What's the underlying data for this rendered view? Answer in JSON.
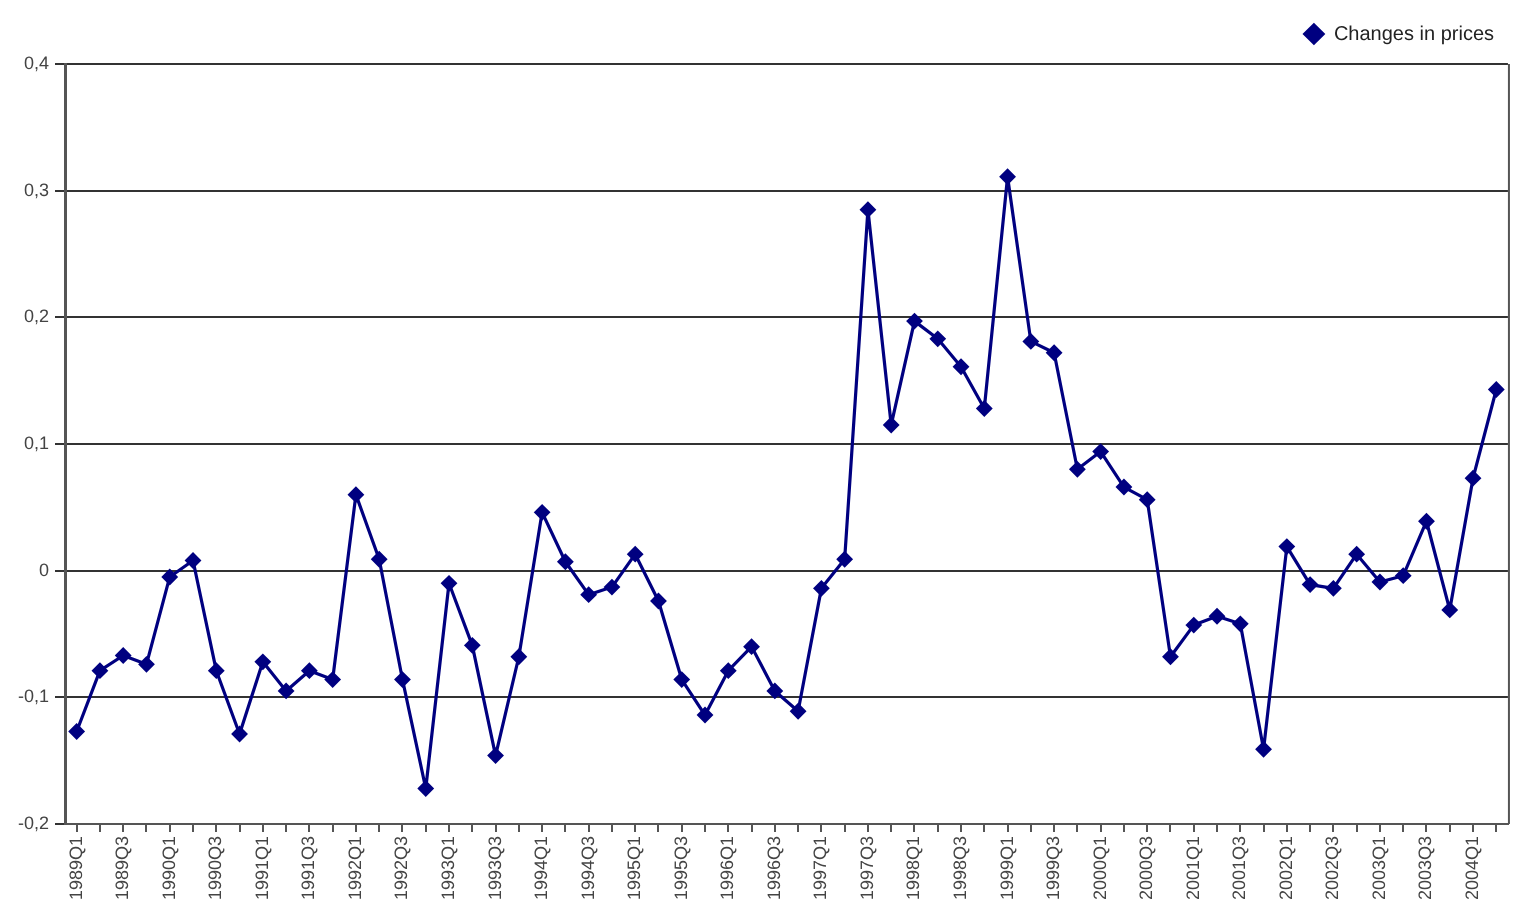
{
  "chart_data": {
    "type": "line",
    "categories": [
      "1989Q1",
      null,
      "1989Q3",
      null,
      "1990Q1",
      null,
      "1990Q3",
      null,
      "1991Q1",
      null,
      "1991Q3",
      null,
      "1992Q1",
      null,
      "1992Q3",
      null,
      "1993Q1",
      null,
      "1993Q3",
      null,
      "1994Q1",
      null,
      "1994Q3",
      null,
      "1995Q1",
      null,
      "1995Q3",
      null,
      "1996Q1",
      null,
      "1996Q3",
      null,
      "1997Q1",
      null,
      "1997Q3",
      null,
      "1998Q1",
      null,
      "1998Q3",
      null,
      "1999Q1",
      null,
      "1999Q3",
      null,
      "2000Q1",
      null,
      "2000Q3",
      null,
      "2001Q1",
      null,
      "2001Q3",
      null,
      "2002Q1",
      null,
      "2002Q3",
      null,
      "2003Q1",
      null,
      "2003Q3",
      null,
      "2004Q1",
      null
    ],
    "series": [
      {
        "name": "Changes in prices",
        "color": "#000080",
        "values": [
          -0.127,
          -0.079,
          -0.067,
          -0.074,
          -0.005,
          0.008,
          -0.079,
          -0.129,
          -0.072,
          -0.095,
          -0.079,
          -0.086,
          0.06,
          0.009,
          -0.086,
          -0.172,
          -0.01,
          -0.059,
          -0.146,
          -0.068,
          0.046,
          0.007,
          -0.019,
          -0.013,
          0.013,
          -0.024,
          -0.086,
          -0.114,
          -0.079,
          -0.06,
          -0.095,
          -0.111,
          -0.014,
          0.009,
          0.285,
          0.115,
          0.197,
          0.183,
          0.161,
          0.128,
          0.311,
          0.181,
          0.172,
          0.08,
          0.094,
          0.066,
          0.056,
          -0.068,
          -0.043,
          -0.036,
          -0.042,
          -0.141,
          0.019,
          -0.011,
          -0.014,
          0.013,
          -0.009,
          -0.004,
          0.039,
          -0.031,
          0.073,
          0.143
        ]
      }
    ],
    "ylim": [
      -0.2,
      0.4
    ],
    "yticks": [
      {
        "value": -0.2,
        "label": "-0,2"
      },
      {
        "value": -0.1,
        "label": "-0,1"
      },
      0,
      {
        "value": 0.1,
        "label": "0,1"
      },
      {
        "value": 0.2,
        "label": "0,2"
      },
      {
        "value": 0.3,
        "label": "0,3"
      },
      {
        "value": 0.4,
        "label": "0,4"
      }
    ],
    "grid": "y",
    "legend": "top right",
    "marker": "diamond",
    "line_style": "solid"
  }
}
